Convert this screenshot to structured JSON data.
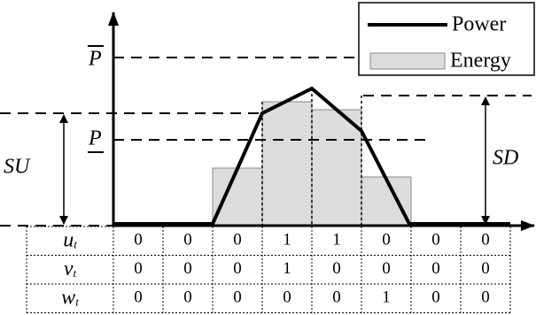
{
  "legend": {
    "power": "Power",
    "energy": "Energy"
  },
  "labels": {
    "p_max": "P",
    "p_min": "P",
    "su": "SU",
    "sd": "SD"
  },
  "table": {
    "rows": [
      {
        "label": "u",
        "sub": "t",
        "values": [
          0,
          0,
          0,
          1,
          1,
          0,
          0,
          0
        ]
      },
      {
        "label": "v",
        "sub": "t",
        "values": [
          0,
          0,
          0,
          1,
          0,
          0,
          0,
          0
        ]
      },
      {
        "label": "w",
        "sub": "t",
        "values": [
          0,
          0,
          0,
          0,
          0,
          1,
          0,
          0
        ]
      }
    ]
  }
}
